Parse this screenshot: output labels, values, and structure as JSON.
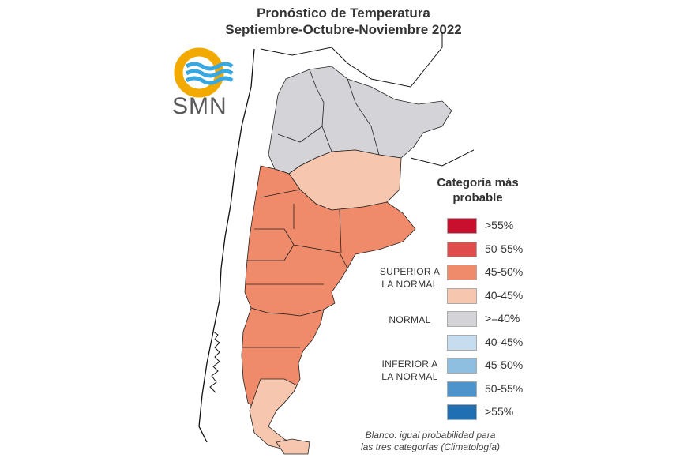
{
  "header": {
    "title_line1": "Pronóstico de Temperatura",
    "title_line2": "Septiembre-Octubre-Noviembre 2022"
  },
  "logo": {
    "text": "SMN",
    "colors": {
      "ring": "#f2a900",
      "waves": "#3aa8e0"
    }
  },
  "legend": {
    "title_line1": "Categoría más",
    "title_line2": "probable",
    "groups": {
      "superior_line1": "SUPERIOR A",
      "superior_line2": "LA NORMAL",
      "normal": "NORMAL",
      "inferior_line1": "INFERIOR A",
      "inferior_line2": "LA NORMAL"
    },
    "items": [
      {
        "label": ">55%",
        "color": "#c8102e"
      },
      {
        "label": "50-55%",
        "color": "#e04b4b"
      },
      {
        "label": "45-50%",
        "color": "#ef8a6a"
      },
      {
        "label": "40-45%",
        "color": "#f6c7ae"
      },
      {
        "label": ">=40%",
        "color": "#d4d4d8"
      },
      {
        "label": "40-45%",
        "color": "#c6dcef"
      },
      {
        "label": "45-50%",
        "color": "#8fbfe0"
      },
      {
        "label": "50-55%",
        "color": "#4d93cc"
      },
      {
        "label": ">55%",
        "color": "#1f6fb2"
      }
    ]
  },
  "footnote": {
    "line1": "Blanco: igual probabilidad para",
    "line2": "las tres categorías (Climatología)"
  },
  "map_colors": {
    "normal": "#d4d4d8",
    "light_above": "#f6c7ae",
    "above": "#ef8a6a",
    "border": "#222222",
    "coast": "#111111"
  }
}
